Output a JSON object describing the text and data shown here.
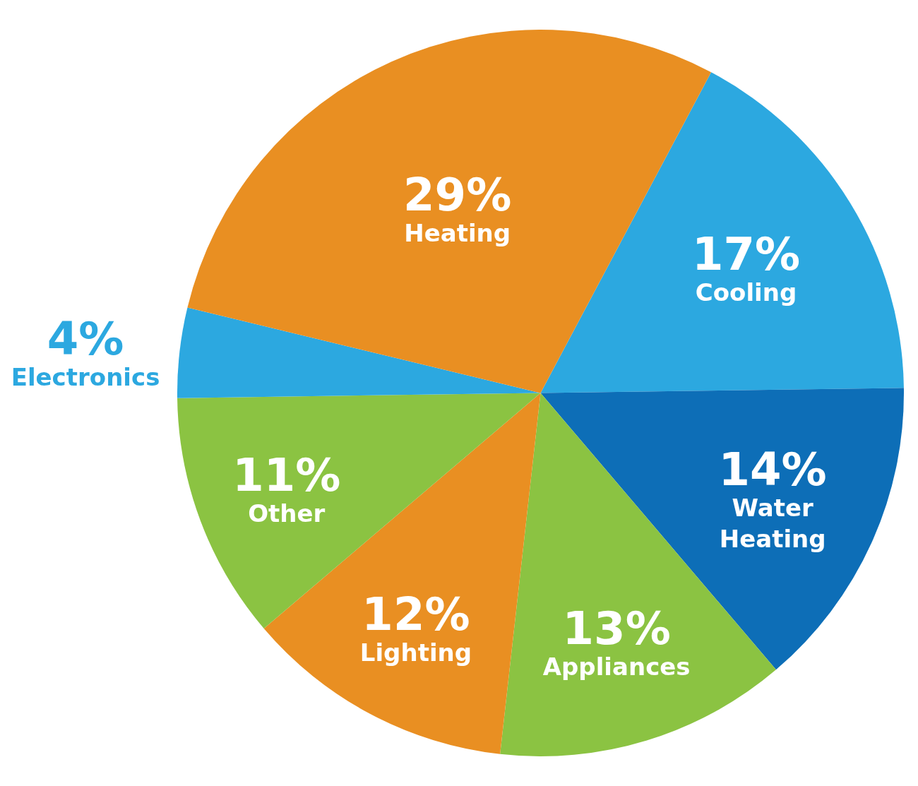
{
  "chart_data": {
    "type": "pie",
    "categories": [
      "Cooling",
      "Water Heating",
      "Appliances",
      "Lighting",
      "Other",
      "Electronics",
      "Heating"
    ],
    "values": [
      17,
      14,
      13,
      12,
      11,
      4,
      29
    ],
    "value_labels": [
      "17%",
      "14%",
      "13%",
      "12%",
      "11%",
      "4%",
      "29%"
    ],
    "colors": [
      "#2ca8e0",
      "#0d6eb7",
      "#8bc342",
      "#e98f22",
      "#8bc342",
      "#2ca8e0",
      "#e98f22"
    ],
    "legend": false
  }
}
